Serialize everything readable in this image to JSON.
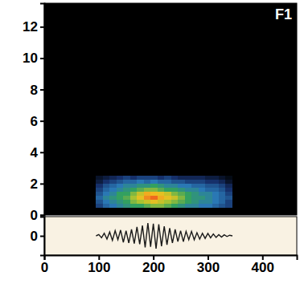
{
  "chart_data": [
    {
      "type": "heatmap",
      "title": "F1",
      "x_edges": [
        95,
        107.5,
        120,
        132.5,
        145,
        157.5,
        170,
        182.5,
        195,
        207.5,
        220,
        232.5,
        245,
        257.5,
        270,
        282.5,
        295,
        307.5,
        320,
        332.5,
        345
      ],
      "y_edges": [
        0.5,
        0.75,
        1,
        1.25,
        1.5,
        1.75,
        2,
        2.25,
        2.5
      ],
      "cells": [
        [
          0.3,
          0.4,
          0.45,
          0.5,
          0.55,
          0.6,
          0.6,
          0.65,
          0.7,
          0.7,
          0.65,
          0.6,
          0.55,
          0.5,
          0.5,
          0.45,
          0.45,
          0.4,
          0.35,
          0.3
        ],
        [
          0.35,
          0.45,
          0.5,
          0.55,
          0.6,
          0.7,
          0.75,
          0.8,
          0.85,
          0.8,
          0.75,
          0.7,
          0.65,
          0.6,
          0.55,
          0.5,
          0.5,
          0.45,
          0.4,
          0.3
        ],
        [
          0.4,
          0.5,
          0.55,
          0.6,
          0.65,
          0.75,
          0.85,
          0.95,
          1.0,
          0.9,
          0.85,
          0.8,
          0.7,
          0.6,
          0.55,
          0.55,
          0.5,
          0.45,
          0.4,
          0.35
        ],
        [
          0.35,
          0.45,
          0.5,
          0.6,
          0.6,
          0.7,
          0.8,
          0.9,
          0.88,
          0.85,
          0.8,
          0.7,
          0.65,
          0.6,
          0.55,
          0.5,
          0.5,
          0.45,
          0.4,
          0.3
        ],
        [
          0.3,
          0.4,
          0.45,
          0.5,
          0.55,
          0.6,
          0.65,
          0.7,
          0.7,
          0.65,
          0.6,
          0.6,
          0.55,
          0.5,
          0.5,
          0.45,
          0.4,
          0.4,
          0.35,
          0.25
        ],
        [
          0.25,
          0.35,
          0.4,
          0.45,
          0.5,
          0.5,
          0.55,
          0.55,
          0.6,
          0.55,
          0.5,
          0.5,
          0.45,
          0.45,
          0.4,
          0.4,
          0.35,
          0.35,
          0.3,
          0.2
        ],
        [
          0.15,
          0.25,
          0.3,
          0.35,
          0.4,
          0.4,
          0.45,
          0.4,
          0.45,
          0.4,
          0.4,
          0.35,
          0.35,
          0.3,
          0.3,
          0.3,
          0.25,
          0.25,
          0.2,
          0.1
        ],
        [
          0.1,
          0.15,
          0.2,
          0.25,
          0.3,
          0.25,
          0.3,
          0.3,
          0.3,
          0.25,
          0.3,
          0.25,
          0.2,
          0.2,
          0.2,
          0.2,
          0.15,
          0.15,
          0.1,
          0.05
        ]
      ],
      "zlim": [
        0,
        1
      ],
      "xlim": [
        0,
        463
      ],
      "ylim": [
        0,
        13.5
      ],
      "yticks": [
        0,
        2,
        4,
        6,
        8,
        10,
        12
      ],
      "tick_labels": "y"
    },
    {
      "type": "line",
      "color": "#1a1a1a",
      "x": [
        95,
        100,
        105,
        110,
        115,
        120,
        125,
        130,
        135,
        140,
        145,
        150,
        155,
        160,
        165,
        170,
        175,
        180,
        185,
        190,
        195,
        200,
        205,
        210,
        215,
        220,
        225,
        230,
        235,
        240,
        245,
        250,
        255,
        260,
        265,
        270,
        275,
        280,
        285,
        290,
        295,
        300,
        305,
        310,
        315,
        320,
        325,
        330,
        335,
        340,
        345
      ],
      "values": [
        0,
        0.1,
        -0.15,
        0.2,
        -0.25,
        0.3,
        -0.35,
        0.4,
        -0.3,
        0.45,
        -0.5,
        0.4,
        -0.55,
        0.5,
        -0.6,
        0.7,
        -0.65,
        0.8,
        -0.9,
        1.0,
        -0.85,
        0.95,
        -1.0,
        0.9,
        -0.8,
        0.75,
        -0.7,
        0.6,
        -0.55,
        0.5,
        -0.45,
        0.4,
        -0.45,
        0.35,
        -0.3,
        0.35,
        -0.3,
        0.25,
        -0.25,
        0.2,
        -0.2,
        0.2,
        -0.15,
        0.15,
        -0.12,
        0.1,
        -0.1,
        0.08,
        -0.05,
        0.05,
        0
      ],
      "xlim": [
        0,
        463
      ],
      "ylim": [
        -1.5,
        1.5
      ],
      "xticks": [
        0,
        100,
        200,
        300,
        400
      ],
      "yticks": [
        0
      ]
    }
  ]
}
